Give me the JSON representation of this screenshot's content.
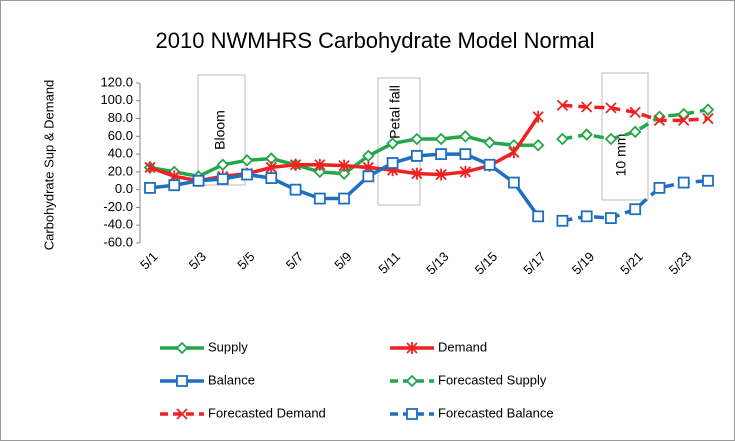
{
  "chart_data": {
    "type": "line",
    "title": "2010 NWMHRS Carbohydrate Model Normal",
    "y_label": "Carbohydrate Sup & Demand",
    "annotations": [
      "Bloom",
      "Petal fall",
      "10 mm"
    ],
    "categories": [
      "5/1",
      null,
      "5/3",
      null,
      "5/5",
      null,
      "5/7",
      null,
      "5/9",
      null,
      "5/11",
      null,
      "5/13",
      null,
      "5/15",
      null,
      "5/17",
      null,
      "5/19",
      null,
      "5/21",
      null,
      "5/23",
      null
    ],
    "ylim": [
      -60,
      120
    ],
    "yticks": [
      {
        "value": -60,
        "label": "-60.0"
      },
      {
        "value": -40,
        "label": "-40.0"
      },
      {
        "value": -20,
        "label": "-20.0"
      },
      {
        "value": 0,
        "label": "0.0"
      },
      {
        "value": 20,
        "label": "20.0"
      },
      {
        "value": 40,
        "label": "40.0"
      },
      {
        "value": 60,
        "label": "60.0"
      },
      {
        "value": 80,
        "label": "80.0"
      },
      {
        "value": 100,
        "label": "100.0"
      },
      {
        "value": 120,
        "label": "120.0"
      }
    ],
    "grid": false,
    "series": [
      {
        "name": "Supply",
        "color": "#22a84a",
        "dashed": false,
        "marker": "diamond",
        "values": [
          25,
          20,
          15,
          28,
          33,
          35,
          28,
          20,
          18,
          38,
          52,
          57,
          57,
          60,
          53,
          50,
          50,
          null,
          null,
          null,
          null,
          null,
          null,
          null
        ]
      },
      {
        "name": "Demand",
        "color": "#ee2222",
        "dashed": false,
        "marker": "star",
        "values": [
          25,
          15,
          10,
          15,
          18,
          25,
          28,
          28,
          27,
          25,
          22,
          18,
          17,
          20,
          27,
          42,
          82,
          null,
          null,
          null,
          null,
          null,
          null,
          null
        ]
      },
      {
        "name": "Balance",
        "color": "#1f6fc0",
        "dashed": false,
        "marker": "square",
        "values": [
          2,
          5,
          10,
          12,
          17,
          13,
          0,
          -10,
          -10,
          15,
          30,
          38,
          40,
          40,
          28,
          8,
          -30,
          null,
          null,
          null,
          null,
          null,
          null,
          null
        ]
      },
      {
        "name": "Forecasted Supply",
        "color": "#22a84a",
        "dashed": true,
        "marker": "diamond",
        "values": [
          null,
          null,
          null,
          null,
          null,
          null,
          null,
          null,
          null,
          null,
          null,
          null,
          null,
          null,
          null,
          null,
          null,
          57,
          62,
          57,
          65,
          82,
          85,
          90
        ]
      },
      {
        "name": "Forecasted Demand",
        "color": "#ee2222",
        "dashed": true,
        "marker": "x",
        "values": [
          null,
          null,
          null,
          null,
          null,
          null,
          null,
          null,
          null,
          null,
          null,
          null,
          null,
          null,
          null,
          null,
          null,
          95,
          93,
          92,
          87,
          78,
          78,
          80
        ]
      },
      {
        "name": "Forecasted Balance",
        "color": "#1f6fc0",
        "dashed": true,
        "marker": "square",
        "values": [
          null,
          null,
          null,
          null,
          null,
          null,
          null,
          null,
          null,
          null,
          null,
          null,
          null,
          null,
          null,
          null,
          null,
          -35,
          -30,
          -32,
          -22,
          2,
          8,
          10
        ]
      }
    ]
  }
}
